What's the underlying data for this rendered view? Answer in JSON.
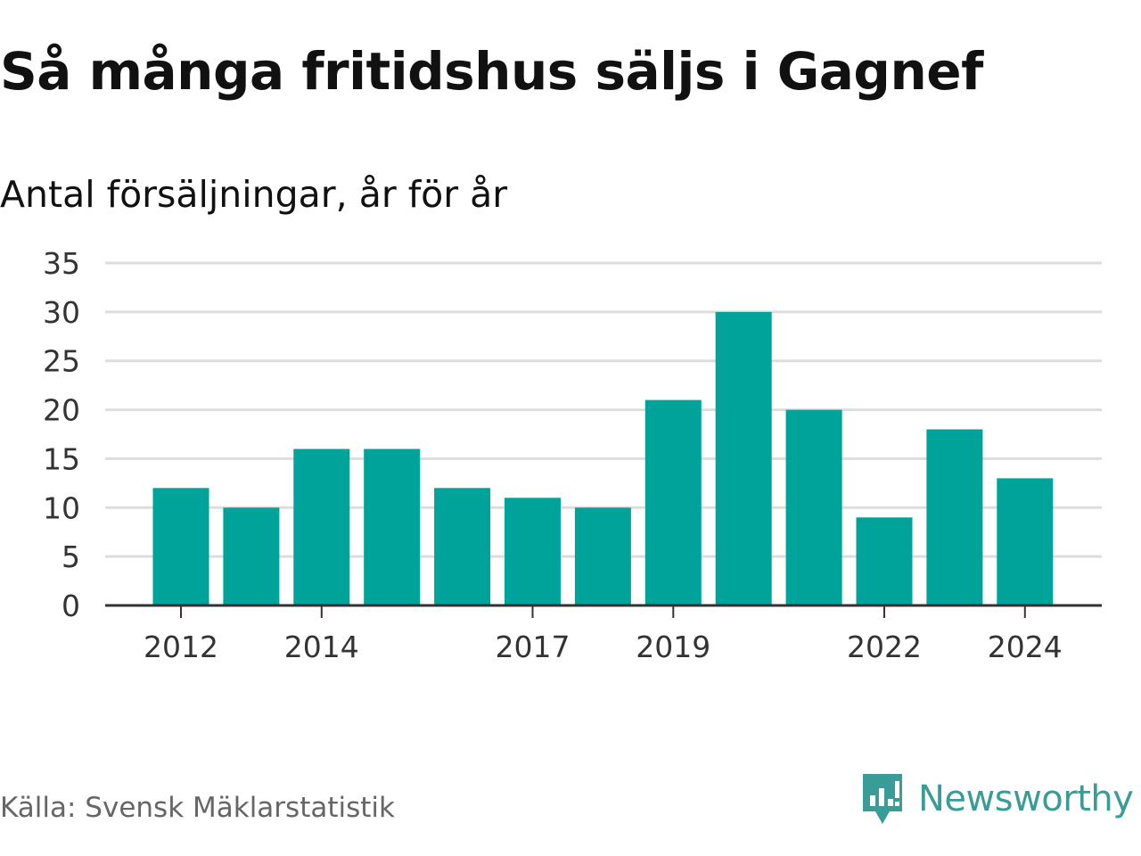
{
  "header": {
    "title": "Så många fritidshus säljs i Gagnef",
    "subtitle": "Antal försäljningar, år för år"
  },
  "footer": {
    "source": "Källa: Svensk Mäklarstatistik",
    "brand": "Newsworthy",
    "brand_icon": "bar-chart-speech-bubble-icon"
  },
  "colors": {
    "bar": "#00a399",
    "grid": "#dddddd",
    "axis": "#333333",
    "tick_text": "#333333",
    "brand": "#3a9c96"
  },
  "chart_data": {
    "type": "bar",
    "categories": [
      "2012",
      "2013",
      "2014",
      "2015",
      "2016",
      "2017",
      "2018",
      "2019",
      "2020",
      "2021",
      "2022",
      "2023",
      "2024"
    ],
    "values": [
      12,
      10,
      16,
      16,
      12,
      11,
      10,
      21,
      30,
      20,
      9,
      18,
      13
    ],
    "x_tick_labels": [
      "2012",
      "2014",
      "2017",
      "2019",
      "2022",
      "2024"
    ],
    "y_ticks": [
      0,
      5,
      10,
      15,
      20,
      25,
      30,
      35
    ],
    "ylim": [
      0,
      35
    ],
    "title": "Så många fritidshus säljs i Gagnef",
    "subtitle": "Antal försäljningar, år för år",
    "xlabel": "",
    "ylabel": "",
    "grid": true,
    "legend": "none"
  }
}
